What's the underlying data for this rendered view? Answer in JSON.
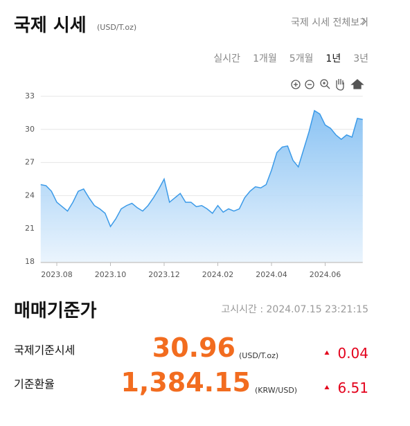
{
  "header": {
    "title": "국제 시세",
    "unit": "(USD/T.oz)",
    "link": "국제 시세 전체보기"
  },
  "tabs": [
    "실시간",
    "1개월",
    "5개월",
    "1년",
    "3년"
  ],
  "chart_data": {
    "type": "area",
    "categories": [
      null,
      null,
      null,
      "2023.08",
      null,
      null,
      null,
      null,
      null,
      null,
      null,
      null,
      null,
      "2023.10",
      null,
      null,
      null,
      null,
      null,
      null,
      null,
      null,
      null,
      "2023.12",
      null,
      null,
      null,
      null,
      null,
      null,
      null,
      null,
      null,
      "2024.02",
      null,
      null,
      null,
      null,
      null,
      null,
      null,
      null,
      null,
      "2024.04",
      null,
      null,
      null,
      null,
      null,
      null,
      null,
      null,
      null,
      "2024.06",
      null,
      null,
      null,
      null,
      null,
      null,
      null
    ],
    "series": [
      {
        "color": "#3b9ae8",
        "values": [
          25.0,
          24.9,
          24.4,
          23.4,
          23.0,
          22.6,
          23.4,
          24.4,
          24.6,
          23.8,
          23.1,
          22.8,
          22.4,
          21.2,
          21.9,
          22.8,
          23.1,
          23.3,
          22.9,
          22.6,
          23.1,
          23.8,
          24.6,
          25.5,
          23.4,
          23.8,
          24.2,
          23.4,
          23.4,
          23.0,
          23.1,
          22.8,
          22.4,
          23.1,
          22.5,
          22.8,
          22.6,
          22.8,
          23.8,
          24.4,
          24.8,
          24.7,
          25.0,
          26.3,
          27.9,
          28.4,
          28.5,
          27.2,
          26.6,
          28.2,
          29.8,
          31.7,
          31.4,
          30.4,
          30.1,
          29.5,
          29.1,
          29.5,
          29.3,
          31.0,
          30.9
        ]
      }
    ],
    "ylim": [
      18,
      33
    ],
    "yticks": [
      18,
      21,
      24,
      27,
      30,
      33
    ],
    "grid": true
  },
  "section": {
    "title": "매매기준가",
    "time": "고시시간 : 2024.07.15 23:21:15"
  },
  "rows": [
    {
      "label": "국제기준시세",
      "price": "30.96",
      "unit": "(USD/T.oz)",
      "change": "0.04"
    },
    {
      "label": "기준환율",
      "price": "1,384.15",
      "unit": "(KRW/USD)",
      "change": "6.51"
    }
  ]
}
